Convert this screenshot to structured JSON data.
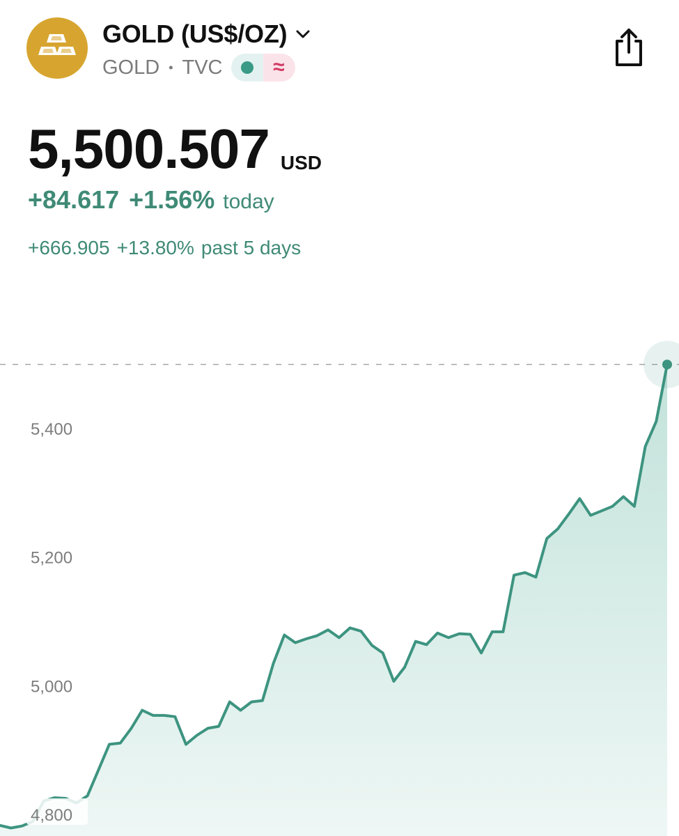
{
  "header": {
    "title": "GOLD (US$/OZ)",
    "symbol": "GOLD",
    "exchange": "TVC",
    "separator": "•",
    "delayed_glyph": "≈",
    "logo_icon": "gold-bars-icon",
    "share_icon": "share-icon",
    "chevron_icon": "chevron-down-icon",
    "colors": {
      "logo_bg": "#d7a52f",
      "market_open": "#3a9a86",
      "delayed": "#d23a63"
    }
  },
  "quote": {
    "price": "5,500.507",
    "currency": "USD",
    "change_today": "+84.617",
    "change_today_pct": "+1.56%",
    "today_label": "today",
    "change_5d": "+666.905",
    "change_5d_pct": "+13.80%",
    "five_day_label": "past 5 days",
    "up_color": "#3f8a76"
  },
  "chart_data": {
    "type": "area",
    "title": "",
    "xlabel": "",
    "ylabel": "",
    "ylim": [
      4790,
      5550
    ],
    "y_ticks": [
      4800,
      5000,
      5200,
      5400
    ],
    "y_tick_labels": [
      "4,800",
      "5,000",
      "5,200",
      "5,400"
    ],
    "reference_line": 5500.507,
    "line_color": "#3d9480",
    "fill_color": "#cfe8e2",
    "grid": false,
    "values": [
      4784,
      4780,
      4783,
      4790,
      4822,
      4827,
      4826,
      4819,
      4830,
      4870,
      4910,
      4912,
      4935,
      4963,
      4955,
      4955,
      4953,
      4910,
      4924,
      4935,
      4938,
      4976,
      4963,
      4976,
      4978,
      5036,
      5080,
      5068,
      5074,
      5079,
      5088,
      5076,
      5091,
      5086,
      5064,
      5052,
      5008,
      5030,
      5070,
      5065,
      5083,
      5076,
      5082,
      5081,
      5052,
      5085,
      5085,
      5173,
      5177,
      5170,
      5230,
      5245,
      5268,
      5292,
      5266,
      5273,
      5280,
      5295,
      5280,
      5373,
      5412,
      5500.5
    ]
  }
}
